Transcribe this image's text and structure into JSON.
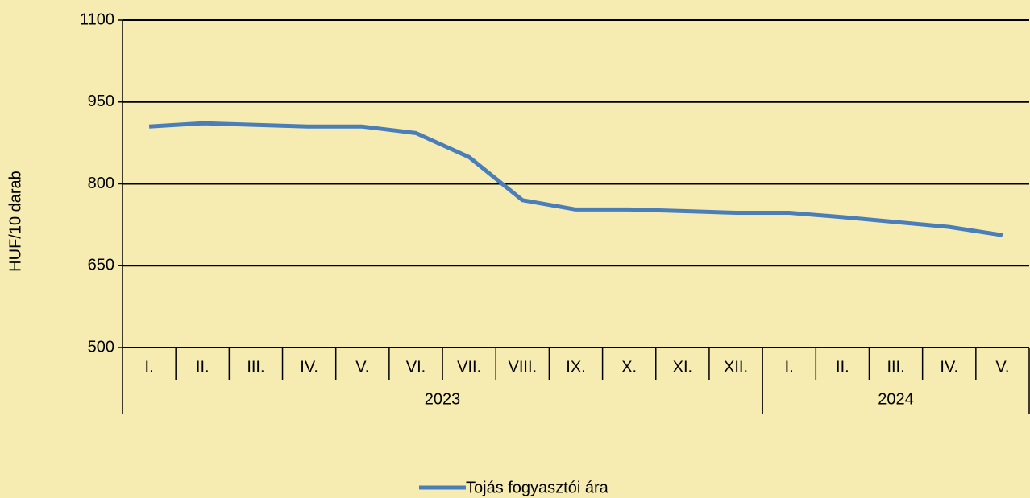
{
  "chart_data": {
    "type": "line",
    "y_label": "HUF/10 darab",
    "groups": [
      {
        "label": "2023",
        "categories": [
          "I.",
          "II.",
          "III.",
          "IV.",
          "V.",
          "VI.",
          "VII.",
          "VIII.",
          "IX.",
          "X.",
          "XI.",
          "XII."
        ]
      },
      {
        "label": "2024",
        "categories": [
          "I.",
          "II.",
          "III.",
          "IV.",
          "V."
        ]
      }
    ],
    "series": [
      {
        "name": "Tojás fogyasztói ára",
        "color": "#4a7ebb",
        "values": [
          905,
          911,
          908,
          905,
          905,
          893,
          849,
          770,
          753,
          753,
          750,
          747,
          747,
          739,
          730,
          721,
          706
        ]
      }
    ],
    "ylim": [
      500,
      1100
    ],
    "yticks": [
      500,
      650,
      800,
      950,
      1100
    ],
    "grid": true,
    "legend": "bottom"
  }
}
